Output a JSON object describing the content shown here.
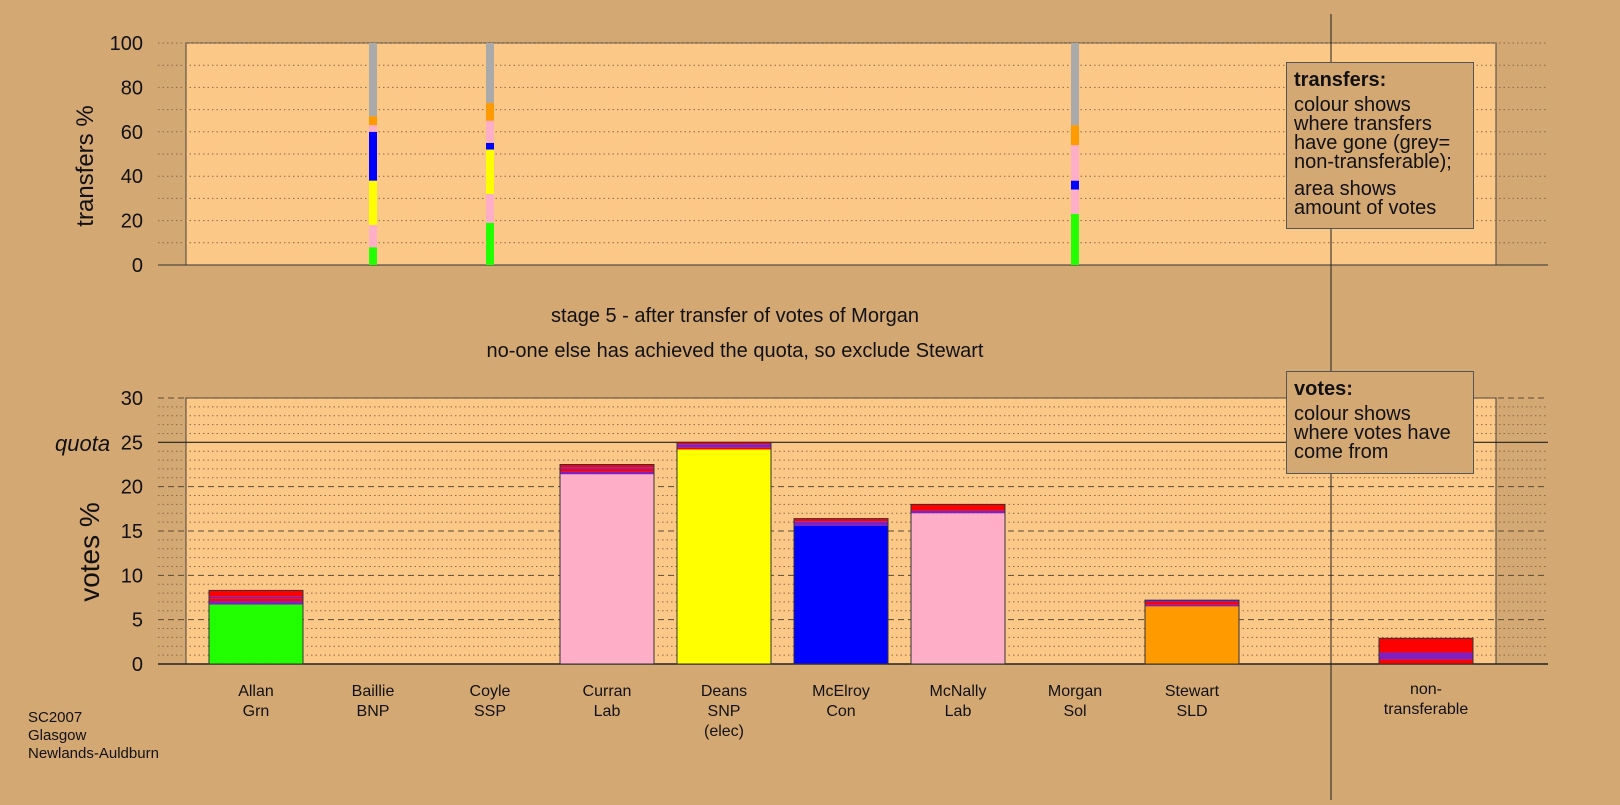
{
  "top_chart": {
    "ylabel": "transfers %",
    "yticks": [
      "0",
      "20",
      "40",
      "60",
      "80",
      "100"
    ]
  },
  "bottom_chart": {
    "ylabel": "votes %",
    "quota_label": "quota",
    "yticks": [
      "0",
      "5",
      "10",
      "15",
      "20",
      "25",
      "30"
    ]
  },
  "caption": {
    "line1": "stage 5 - after transfer of votes of Morgan",
    "line2": "no-one else has achieved the quota, so exclude Stewart"
  },
  "legend_transfers": {
    "title": "transfers:",
    "body1": "colour shows where transfers have gone (grey= non-transferable);",
    "body2": "area shows amount of votes"
  },
  "legend_votes": {
    "title": "votes:",
    "body1": "colour shows where votes have come from"
  },
  "source": {
    "line1": "SC2007",
    "line2": "Glasgow",
    "line3": "Newlands-Auldburn"
  },
  "candidates": [
    {
      "name": "Allan",
      "party": "Grn",
      "note": ""
    },
    {
      "name": "Baillie",
      "party": "BNP",
      "note": ""
    },
    {
      "name": "Coyle",
      "party": "SSP",
      "note": ""
    },
    {
      "name": "Curran",
      "party": "Lab",
      "note": ""
    },
    {
      "name": "Deans",
      "party": "SNP",
      "note": "(elec)"
    },
    {
      "name": "McElroy",
      "party": "Con",
      "note": ""
    },
    {
      "name": "McNally",
      "party": "Lab",
      "note": ""
    },
    {
      "name": "Morgan",
      "party": "Sol",
      "note": ""
    },
    {
      "name": "Stewart",
      "party": "SLD",
      "note": ""
    },
    {
      "name": "non-",
      "party": "transferable",
      "note": ""
    }
  ],
  "colors": {
    "background": "#d4a873",
    "plot_area": "#fcc888",
    "green": "#22ff00",
    "pink": "#ffaec8",
    "yellow": "#ffff00",
    "blue": "#0000ff",
    "orange": "#ff9a00",
    "red": "#ff0000",
    "purple": "#8020c0",
    "grey": "#aaaaaa"
  },
  "chart_data": [
    {
      "type": "bar",
      "stacked": true,
      "ylabel": "transfers %",
      "ylim": [
        0,
        100
      ],
      "grid": true,
      "series": [
        {
          "candidate": "Baillie",
          "segments": [
            {
              "color": "green",
              "from": 0,
              "to": 8
            },
            {
              "color": "pink",
              "from": 8,
              "to": 18
            },
            {
              "color": "yellow",
              "from": 18,
              "to": 38
            },
            {
              "color": "blue",
              "from": 38,
              "to": 60
            },
            {
              "color": "pink",
              "from": 60,
              "to": 63
            },
            {
              "color": "orange",
              "from": 63,
              "to": 67
            },
            {
              "color": "grey",
              "from": 67,
              "to": 100
            }
          ]
        },
        {
          "candidate": "Coyle",
          "segments": [
            {
              "color": "green",
              "from": 0,
              "to": 19
            },
            {
              "color": "pink",
              "from": 19,
              "to": 32
            },
            {
              "color": "yellow",
              "from": 32,
              "to": 52
            },
            {
              "color": "blue",
              "from": 52,
              "to": 55
            },
            {
              "color": "pink",
              "from": 55,
              "to": 65
            },
            {
              "color": "orange",
              "from": 65,
              "to": 73
            },
            {
              "color": "grey",
              "from": 73,
              "to": 100
            }
          ]
        },
        {
          "candidate": "Morgan",
          "segments": [
            {
              "color": "green",
              "from": 0,
              "to": 23
            },
            {
              "color": "pink",
              "from": 23,
              "to": 34
            },
            {
              "color": "blue",
              "from": 34,
              "to": 38
            },
            {
              "color": "pink",
              "from": 38,
              "to": 54
            },
            {
              "color": "orange",
              "from": 54,
              "to": 63
            },
            {
              "color": "grey",
              "from": 63,
              "to": 100
            }
          ]
        }
      ]
    },
    {
      "type": "bar",
      "stacked": true,
      "ylabel": "votes %",
      "ylim": [
        0,
        30
      ],
      "quota": 25,
      "grid": true,
      "categories": [
        "Allan Grn",
        "Baillie BNP",
        "Coyle SSP",
        "Curran Lab",
        "Deans SNP (elec)",
        "McElroy Con",
        "McNally Lab",
        "Morgan Sol",
        "Stewart SLD",
        "non-transferable"
      ],
      "series": [
        {
          "candidate": "Allan",
          "segments": [
            {
              "color": "green",
              "from": 0,
              "to": 6.7
            },
            {
              "color": "purple",
              "from": 6.7,
              "to": 7.1
            },
            {
              "color": "red",
              "from": 7.1,
              "to": 7.4
            },
            {
              "color": "purple",
              "from": 7.4,
              "to": 7.6
            },
            {
              "color": "red",
              "from": 7.6,
              "to": 8.3
            }
          ]
        },
        {
          "candidate": "Curran",
          "segments": [
            {
              "color": "pink",
              "from": 0,
              "to": 21.4
            },
            {
              "color": "purple",
              "from": 21.4,
              "to": 21.7
            },
            {
              "color": "red",
              "from": 21.7,
              "to": 22.0
            },
            {
              "color": "purple",
              "from": 22.0,
              "to": 22.2
            },
            {
              "color": "red",
              "from": 22.2,
              "to": 22.5
            }
          ]
        },
        {
          "candidate": "Deans",
          "segments": [
            {
              "color": "yellow",
              "from": 0,
              "to": 24.2
            },
            {
              "color": "red",
              "from": 24.2,
              "to": 24.4
            },
            {
              "color": "purple",
              "from": 24.4,
              "to": 24.8
            },
            {
              "color": "red",
              "from": 24.8,
              "to": 25.0
            }
          ]
        },
        {
          "candidate": "McElroy",
          "segments": [
            {
              "color": "blue",
              "from": 0,
              "to": 15.6
            },
            {
              "color": "purple",
              "from": 15.6,
              "to": 16.1
            },
            {
              "color": "red",
              "from": 16.1,
              "to": 16.4
            }
          ]
        },
        {
          "candidate": "McNally",
          "segments": [
            {
              "color": "pink",
              "from": 0,
              "to": 17.0
            },
            {
              "color": "purple",
              "from": 17.0,
              "to": 17.3
            },
            {
              "color": "red",
              "from": 17.3,
              "to": 18.0
            }
          ]
        },
        {
          "candidate": "Stewart",
          "segments": [
            {
              "color": "orange",
              "from": 0,
              "to": 6.5
            },
            {
              "color": "purple",
              "from": 6.5,
              "to": 6.7
            },
            {
              "color": "red",
              "from": 6.7,
              "to": 7.0
            },
            {
              "color": "purple",
              "from": 7.0,
              "to": 7.2
            }
          ]
        },
        {
          "candidate": "non-transferable",
          "segments": [
            {
              "color": "red",
              "from": 0,
              "to": 0.5
            },
            {
              "color": "purple",
              "from": 0.5,
              "to": 1.3
            },
            {
              "color": "red",
              "from": 1.3,
              "to": 2.9
            }
          ]
        }
      ]
    }
  ]
}
